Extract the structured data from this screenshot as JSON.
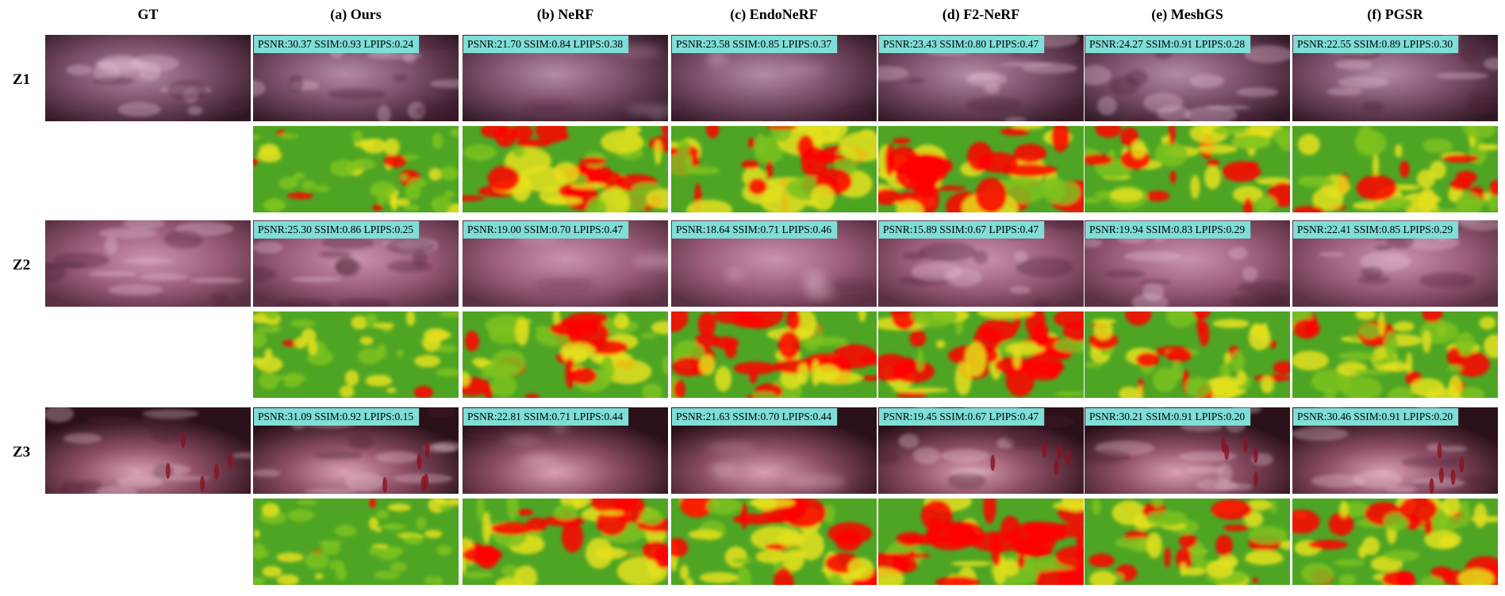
{
  "columns": [
    "GT",
    "(a) Ours",
    "(b) NeRF",
    "(c) EndoNeRF",
    "(d) F2-NeRF",
    "(e) MeshGS",
    "(f) PGSR"
  ],
  "rows": [
    {
      "label": "Z1",
      "metrics": [
        "PSNR:30.37 SSIM:0.93 LPIPS:0.24",
        "PSNR:21.70 SSIM:0.84 LPIPS:0.38",
        "PSNR:23.58 SSIM:0.85 LPIPS:0.37",
        "PSNR:23.43 SSIM:0.80 LPIPS:0.47",
        "PSNR:24.27 SSIM:0.91 LPIPS:0.28",
        "PSNR:22.55 SSIM:0.89 LPIPS:0.30"
      ]
    },
    {
      "label": "Z2",
      "metrics": [
        "PSNR:25.30 SSIM:0.86 LPIPS:0.25",
        "PSNR:19.00 SSIM:0.70 LPIPS:0.47",
        "PSNR:18.64 SSIM:0.71 LPIPS:0.46",
        "PSNR:15.89 SSIM:0.67 LPIPS:0.47",
        "PSNR:19.94 SSIM:0.83 LPIPS:0.29",
        "PSNR:22.41 SSIM:0.85 LPIPS:0.29"
      ]
    },
    {
      "label": "Z3",
      "metrics": [
        "PSNR:31.09 SSIM:0.92 LPIPS:0.15",
        "PSNR:22.81 SSIM:0.71 LPIPS:0.44",
        "PSNR:21.63 SSIM:0.70 LPIPS:0.44",
        "PSNR:19.45 SSIM:0.67 LPIPS:0.47",
        "PSNR:30.21 SSIM:0.91 LPIPS:0.20",
        "PSNR:30.46 SSIM:0.91 LPIPS:0.20"
      ]
    }
  ]
}
